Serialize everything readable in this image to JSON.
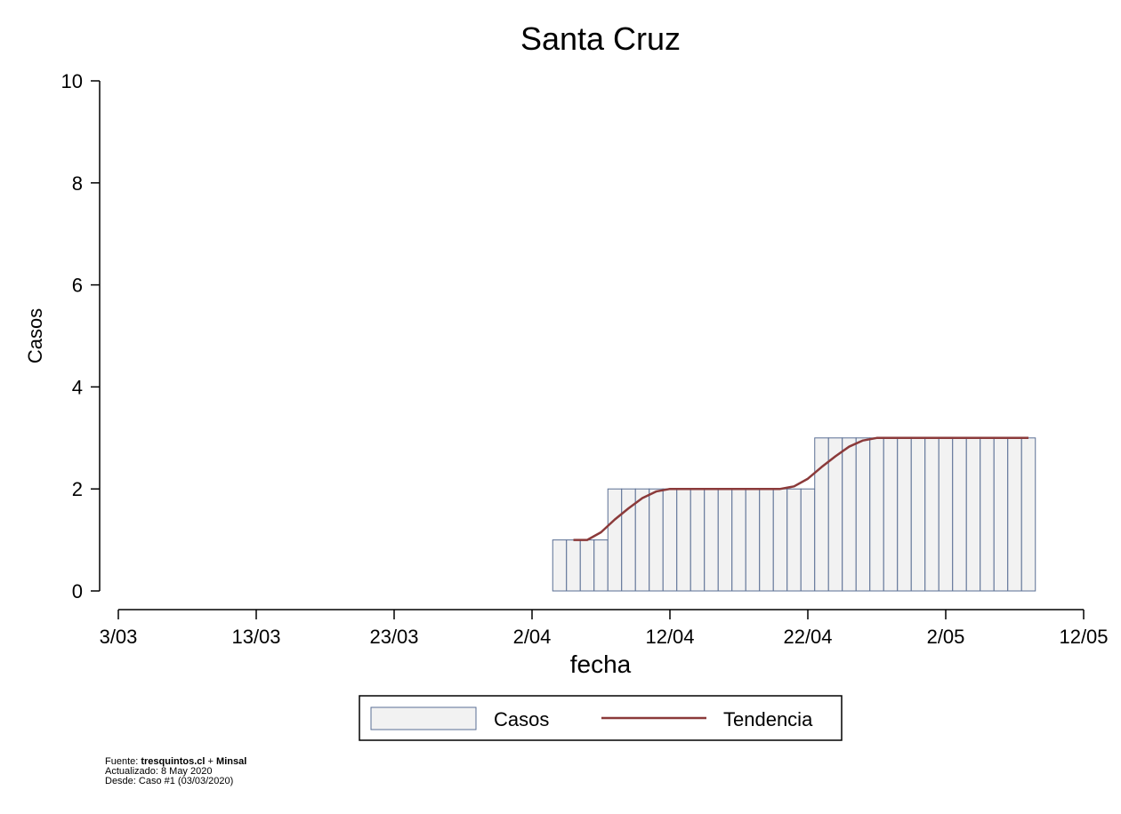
{
  "chart_data": {
    "type": "bar",
    "title": "Santa Cruz",
    "xlabel": "fecha",
    "ylabel": "Casos",
    "x_ticks": [
      "3/03",
      "13/03",
      "23/03",
      "2/04",
      "12/04",
      "22/04",
      "2/05",
      "12/05"
    ],
    "y_ticks": [
      "0",
      "2",
      "4",
      "6",
      "8",
      "10"
    ],
    "ylim": [
      0,
      10
    ],
    "xlim": [
      "2020-03-03",
      "2020-05-12"
    ],
    "grid": false,
    "legend_position": "bottom",
    "series": [
      {
        "name": "Casos",
        "kind": "bar",
        "color": "#f2f2f2",
        "edge_color": "#5a6f94",
        "x": [
          "2020-04-04",
          "2020-04-05",
          "2020-04-06",
          "2020-04-07",
          "2020-04-08",
          "2020-04-09",
          "2020-04-10",
          "2020-04-11",
          "2020-04-12",
          "2020-04-13",
          "2020-04-14",
          "2020-04-15",
          "2020-04-16",
          "2020-04-17",
          "2020-04-18",
          "2020-04-19",
          "2020-04-20",
          "2020-04-21",
          "2020-04-22",
          "2020-04-23",
          "2020-04-24",
          "2020-04-25",
          "2020-04-26",
          "2020-04-27",
          "2020-04-28",
          "2020-04-29",
          "2020-04-30",
          "2020-05-01",
          "2020-05-02",
          "2020-05-03",
          "2020-05-04",
          "2020-05-05",
          "2020-05-06",
          "2020-05-07",
          "2020-05-08"
        ],
        "values": [
          1,
          1,
          1,
          1,
          2,
          2,
          2,
          2,
          2,
          2,
          2,
          2,
          2,
          2,
          2,
          2,
          2,
          2,
          2,
          3,
          3,
          3,
          3,
          3,
          3,
          3,
          3,
          3,
          3,
          3,
          3,
          3,
          3,
          3,
          3
        ]
      },
      {
        "name": "Tendencia",
        "kind": "line",
        "color": "#8b3a3a",
        "x": [
          "2020-04-05",
          "2020-04-06",
          "2020-04-07",
          "2020-04-08",
          "2020-04-09",
          "2020-04-10",
          "2020-04-11",
          "2020-04-12",
          "2020-04-13",
          "2020-04-14",
          "2020-04-15",
          "2020-04-16",
          "2020-04-17",
          "2020-04-18",
          "2020-04-19",
          "2020-04-20",
          "2020-04-21",
          "2020-04-22",
          "2020-04-23",
          "2020-04-24",
          "2020-04-25",
          "2020-04-26",
          "2020-04-27",
          "2020-04-28",
          "2020-04-29",
          "2020-04-30",
          "2020-05-01",
          "2020-05-02",
          "2020-05-03",
          "2020-05-04",
          "2020-05-05",
          "2020-05-06",
          "2020-05-07",
          "2020-05-08"
        ],
        "values": [
          1.0,
          1.0,
          1.15,
          1.4,
          1.62,
          1.82,
          1.95,
          2.0,
          2.0,
          2.0,
          2.0,
          2.0,
          2.0,
          2.0,
          2.0,
          2.0,
          2.05,
          2.2,
          2.43,
          2.64,
          2.83,
          2.95,
          3.0,
          3.0,
          3.0,
          3.0,
          3.0,
          3.0,
          3.0,
          3.0,
          3.0,
          3.0,
          3.0,
          3.0
        ]
      }
    ]
  },
  "legend": {
    "items": [
      {
        "label": "Casos"
      },
      {
        "label": "Tendencia"
      }
    ]
  },
  "footer": {
    "source_prefix": "Fuente: ",
    "source_site": "tresquintos.cl",
    "source_plus": " + ",
    "source_org": "Minsal",
    "updated": "Actualizado: 8 May 2020",
    "since": "Desde: Caso #1  (03/03/2020)"
  }
}
